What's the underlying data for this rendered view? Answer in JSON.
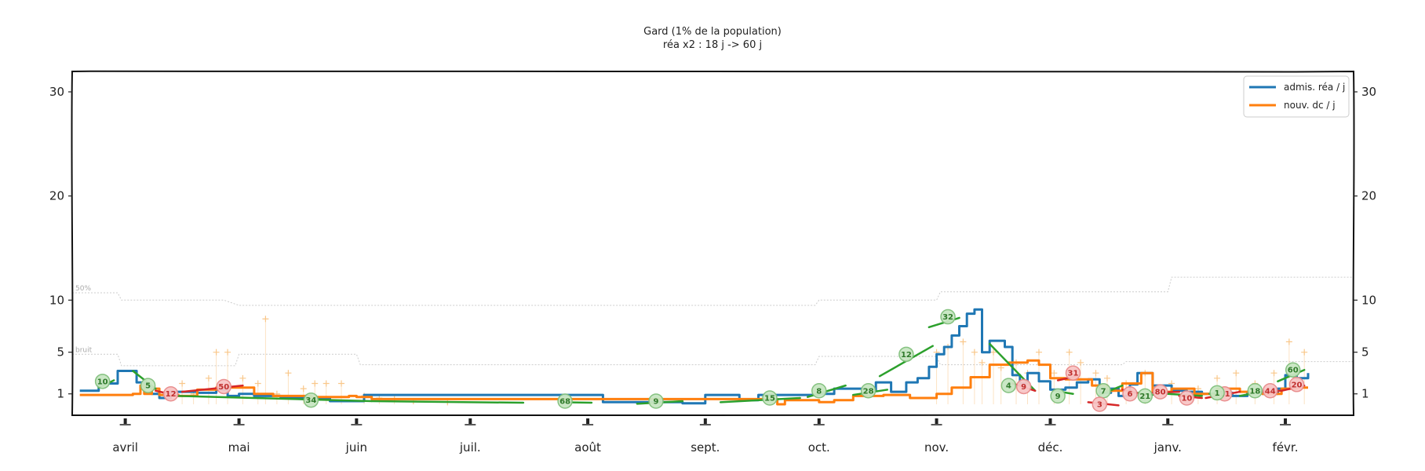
{
  "chart_data": {
    "type": "line",
    "title": "Gard (1% de la population)",
    "subtitle": "réa x2 : 18 j -> 60 j",
    "xlabel": "",
    "ylabel": "",
    "x_range": [
      "2020-03-18",
      "2021-02-19"
    ],
    "ylim": [
      0,
      32
    ],
    "y_ticks": [
      1,
      5,
      10,
      20,
      30
    ],
    "x_ticks": [
      {
        "date": "2020-04-01",
        "label": "avril"
      },
      {
        "date": "2020-05-01",
        "label": "mai"
      },
      {
        "date": "2020-06-01",
        "label": "juin"
      },
      {
        "date": "2020-07-01",
        "label": "juil."
      },
      {
        "date": "2020-08-01",
        "label": "août"
      },
      {
        "date": "2020-09-01",
        "label": "sept."
      },
      {
        "date": "2020-10-01",
        "label": "oct."
      },
      {
        "date": "2020-11-01",
        "label": "nov."
      },
      {
        "date": "2020-12-01",
        "label": "déc."
      },
      {
        "date": "2021-01-01",
        "label": "janv."
      },
      {
        "date": "2021-02-01",
        "label": "févr."
      }
    ],
    "legend": {
      "position": "top-right",
      "entries": [
        {
          "label": "admis. réa / j",
          "color": "#1f77b4"
        },
        {
          "label": "nouv. dc / j",
          "color": "#ff7f0e"
        }
      ]
    },
    "thresholds": [
      {
        "label": "50%",
        "color": "#cccccc",
        "points": [
          [
            "2020-03-18",
            10.7
          ],
          [
            "2020-03-30",
            10.7
          ],
          [
            "2020-03-31",
            10.0
          ],
          [
            "2020-04-27",
            10.0
          ],
          [
            "2020-05-01",
            9.5
          ],
          [
            "2020-09-30",
            9.5
          ],
          [
            "2020-10-01",
            10.0
          ],
          [
            "2020-11-01",
            10.0
          ],
          [
            "2020-11-02",
            10.8
          ],
          [
            "2021-01-01",
            10.8
          ],
          [
            "2021-01-02",
            12.2
          ],
          [
            "2021-02-19",
            12.2
          ]
        ]
      },
      {
        "label": "bruit",
        "color": "#cccccc",
        "points": [
          [
            "2020-03-18",
            4.8
          ],
          [
            "2020-03-30",
            4.8
          ],
          [
            "2020-03-31",
            3.7
          ],
          [
            "2020-04-30",
            3.7
          ],
          [
            "2020-05-01",
            4.8
          ],
          [
            "2020-06-01",
            4.8
          ],
          [
            "2020-06-02",
            3.8
          ],
          [
            "2020-09-30",
            3.8
          ],
          [
            "2020-10-01",
            4.6
          ],
          [
            "2020-11-01",
            4.6
          ],
          [
            "2020-11-02",
            3.8
          ],
          [
            "2020-12-20",
            3.8
          ],
          [
            "2020-12-21",
            4.1
          ],
          [
            "2021-02-19",
            4.1
          ]
        ]
      }
    ],
    "series": [
      {
        "name": "admis. réa / j",
        "color": "#1f77b4",
        "x": [
          "2020-03-20",
          "2020-03-24",
          "2020-03-25",
          "2020-03-28",
          "2020-03-30",
          "2020-04-01",
          "2020-04-04",
          "2020-04-06",
          "2020-04-08",
          "2020-04-10",
          "2020-04-13",
          "2020-04-20",
          "2020-04-25",
          "2020-04-28",
          "2020-05-01",
          "2020-05-05",
          "2020-05-12",
          "2020-05-20",
          "2020-05-25",
          "2020-06-03",
          "2020-08-05",
          "2020-08-20",
          "2020-08-26",
          "2020-09-01",
          "2020-09-06",
          "2020-09-10",
          "2020-09-15",
          "2020-09-25",
          "2020-10-01",
          "2020-10-05",
          "2020-10-08",
          "2020-10-13",
          "2020-10-16",
          "2020-10-20",
          "2020-10-24",
          "2020-10-27",
          "2020-10-30",
          "2020-11-01",
          "2020-11-03",
          "2020-11-05",
          "2020-11-07",
          "2020-11-09",
          "2020-11-11",
          "2020-11-13",
          "2020-11-15",
          "2020-11-19",
          "2020-11-21",
          "2020-11-23",
          "2020-11-25",
          "2020-11-28",
          "2020-12-01",
          "2020-12-05",
          "2020-12-08",
          "2020-12-11",
          "2020-12-14",
          "2020-12-17",
          "2020-12-19",
          "2020-12-22",
          "2020-12-24",
          "2020-12-28",
          "2021-01-02",
          "2021-01-06",
          "2021-01-10",
          "2021-01-14",
          "2021-01-18",
          "2021-01-22",
          "2021-01-26",
          "2021-01-30",
          "2021-02-01",
          "2021-02-04",
          "2021-02-07"
        ],
        "values": [
          1.3,
          1.3,
          2.0,
          2.0,
          3.2,
          3.2,
          2.1,
          1.6,
          1.0,
          0.6,
          1.2,
          1.1,
          1.4,
          0.8,
          1.0,
          0.8,
          0.6,
          0.6,
          0.3,
          0.9,
          0.2,
          0.2,
          0.1,
          0.9,
          0.9,
          0.4,
          0.9,
          0.9,
          1.0,
          1.5,
          1.5,
          1.3,
          2.1,
          1.2,
          2.1,
          2.5,
          3.6,
          4.8,
          5.5,
          6.6,
          7.5,
          8.7,
          9.1,
          5.0,
          6.1,
          5.5,
          2.8,
          2.0,
          3.0,
          2.2,
          1.4,
          1.6,
          2.1,
          2.4,
          1.1,
          1.5,
          0.8,
          1.9,
          3.0,
          1.8,
          1.3,
          1.2,
          1.0,
          1.1,
          0.8,
          1.2,
          1.0,
          1.5,
          2.8,
          2.5,
          3.0
        ]
      },
      {
        "name": "nouv. dc / j",
        "color": "#ff7f0e",
        "x": [
          "2020-03-20",
          "2020-03-28",
          "2020-04-03",
          "2020-04-05",
          "2020-04-06",
          "2020-04-08",
          "2020-04-10",
          "2020-04-15",
          "2020-04-20",
          "2020-04-25",
          "2020-05-01",
          "2020-05-05",
          "2020-05-10",
          "2020-05-20",
          "2020-05-30",
          "2020-06-01",
          "2020-06-05",
          "2020-09-20",
          "2020-09-22",
          "2020-10-01",
          "2020-10-05",
          "2020-10-10",
          "2020-10-18",
          "2020-10-25",
          "2020-11-01",
          "2020-11-05",
          "2020-11-10",
          "2020-11-15",
          "2020-11-20",
          "2020-11-25",
          "2020-11-28",
          "2020-12-01",
          "2020-12-05",
          "2020-12-12",
          "2020-12-16",
          "2020-12-20",
          "2020-12-25",
          "2020-12-28",
          "2021-01-02",
          "2021-01-08",
          "2021-01-14",
          "2021-01-20",
          "2021-01-26",
          "2021-01-31",
          "2021-02-04",
          "2021-02-07"
        ],
        "values": [
          0.9,
          0.9,
          1.0,
          1.8,
          1.0,
          1.5,
          0.9,
          0.8,
          1.4,
          1.6,
          1.6,
          1.0,
          0.8,
          0.7,
          0.8,
          0.7,
          0.5,
          0.0,
          0.4,
          0.2,
          0.4,
          0.8,
          0.9,
          0.6,
          1.0,
          1.6,
          2.6,
          3.8,
          4.0,
          4.2,
          3.8,
          2.5,
          2.4,
          1.8,
          1.3,
          2.0,
          3.0,
          1.2,
          1.5,
          1.0,
          1.5,
          1.2,
          1.0,
          1.5,
          1.6,
          1.6
        ]
      }
    ],
    "trends": [
      {
        "from": "2020-03-25",
        "to": "2020-03-29",
        "y0": 1.6,
        "y1": 2.3,
        "color": "#2ca02c",
        "label": "10",
        "lx": "2020-03-26",
        "ly": 2.2
      },
      {
        "from": "2020-04-03",
        "to": "2020-04-09",
        "y0": 3.2,
        "y1": 1.5,
        "color": "#2ca02c",
        "label": "5",
        "lx": "2020-04-07",
        "ly": 1.8
      },
      {
        "from": "2020-04-09",
        "to": "2020-04-15",
        "y0": 1.3,
        "y1": 0.8,
        "color": "#d62728",
        "label": "12",
        "lx": "2020-04-13",
        "ly": 1.0
      },
      {
        "from": "2020-04-16",
        "to": "2020-05-02",
        "y0": 1.2,
        "y1": 1.8,
        "color": "#d62728",
        "label": "50",
        "lx": "2020-04-27",
        "ly": 1.7
      },
      {
        "from": "2020-04-15",
        "to": "2020-06-05",
        "y0": 0.8,
        "y1": 0.3,
        "color": "#2ca02c",
        "label": "34",
        "lx": "2020-05-20",
        "ly": 0.4
      },
      {
        "from": "2020-06-05",
        "to": "2020-07-15",
        "y0": 0.3,
        "y1": 0.15,
        "color": "#2ca02c",
        "label": "",
        "lx": "",
        "ly": 0
      },
      {
        "from": "2020-07-25",
        "to": "2020-08-02",
        "y0": 0.2,
        "y1": 0.15,
        "color": "#2ca02c",
        "label": "68",
        "lx": "2020-07-26",
        "ly": 0.3
      },
      {
        "from": "2020-08-14",
        "to": "2020-08-26",
        "y0": 0.05,
        "y1": 0.3,
        "color": "#2ca02c",
        "label": "9",
        "lx": "2020-08-19",
        "ly": 0.3
      },
      {
        "from": "2020-09-05",
        "to": "2020-09-26",
        "y0": 0.2,
        "y1": 0.6,
        "color": "#2ca02c",
        "label": "15",
        "lx": "2020-09-18",
        "ly": 0.6
      },
      {
        "from": "2020-09-28",
        "to": "2020-10-08",
        "y0": 0.7,
        "y1": 1.8,
        "color": "#2ca02c",
        "label": "8",
        "lx": "2020-10-01",
        "ly": 1.3
      },
      {
        "from": "2020-10-10",
        "to": "2020-10-19",
        "y0": 0.9,
        "y1": 1.4,
        "color": "#2ca02c",
        "label": "28",
        "lx": "2020-10-14",
        "ly": 1.3
      },
      {
        "from": "2020-10-17",
        "to": "2020-10-31",
        "y0": 2.7,
        "y1": 5.6,
        "color": "#2ca02c",
        "label": "12",
        "lx": "2020-10-24",
        "ly": 4.8
      },
      {
        "from": "2020-10-30",
        "to": "2020-11-07",
        "y0": 7.4,
        "y1": 8.3,
        "color": "#2ca02c",
        "label": "32",
        "lx": "2020-11-04",
        "ly": 8.4
      },
      {
        "from": "2020-11-15",
        "to": "2020-11-27",
        "y0": 5.8,
        "y1": 1.3,
        "color": "#2ca02c",
        "label": "4",
        "lx": "2020-11-20",
        "ly": 1.8
      },
      {
        "from": "2020-11-21",
        "to": "2020-11-27",
        "y0": 2.0,
        "y1": 1.3,
        "color": "#d62728",
        "label": "9",
        "lx": "2020-11-24",
        "ly": 1.7
      },
      {
        "from": "2020-12-02",
        "to": "2020-12-07",
        "y0": 1.3,
        "y1": 1.0,
        "color": "#2ca02c",
        "label": "9",
        "lx": "2020-12-03",
        "ly": 0.8
      },
      {
        "from": "2020-12-03",
        "to": "2020-12-08",
        "y0": 2.3,
        "y1": 2.7,
        "color": "#d62728",
        "label": "31",
        "lx": "2020-12-07",
        "ly": 3.0
      },
      {
        "from": "2020-12-14",
        "to": "2020-12-20",
        "y0": 0.9,
        "y1": 1.8,
        "color": "#2ca02c",
        "label": "7",
        "lx": "2020-12-15",
        "ly": 1.3
      },
      {
        "from": "2020-12-11",
        "to": "2020-12-19",
        "y0": 0.2,
        "y1": -0.1,
        "color": "#d62728",
        "label": "3",
        "lx": "2020-12-14",
        "ly": -0.0
      },
      {
        "from": "2020-12-22",
        "to": "2020-12-28",
        "y0": 1.2,
        "y1": 0.9,
        "color": "#2ca02c",
        "label": "21",
        "lx": "2020-12-26",
        "ly": 0.8
      },
      {
        "from": "2020-12-20",
        "to": "2020-12-26",
        "y0": 1.4,
        "y1": 0.9,
        "color": "#d62728",
        "label": "6",
        "lx": "2020-12-22",
        "ly": 1.0
      },
      {
        "from": "2020-12-28",
        "to": "2021-01-04",
        "y0": 1.1,
        "y1": 1.2,
        "color": "#d62728",
        "label": "80",
        "lx": "2020-12-30",
        "ly": 1.2
      },
      {
        "from": "2021-01-01",
        "to": "2021-01-10",
        "y0": 1.0,
        "y1": 0.8,
        "color": "#2ca02c",
        "label": "",
        "lx": "",
        "ly": 0
      },
      {
        "from": "2021-01-04",
        "to": "2021-01-10",
        "y0": 0.8,
        "y1": 0.6,
        "color": "#d62728",
        "label": "10",
        "lx": "2021-01-06",
        "ly": 0.6
      },
      {
        "from": "2021-01-11",
        "to": "2021-01-20",
        "y0": 0.6,
        "y1": 1.2,
        "color": "#d62728",
        "label": "11",
        "lx": "2021-01-16",
        "ly": 1.0
      },
      {
        "from": "2021-01-12",
        "to": "2021-01-16",
        "y0": 1.0,
        "y1": 1.2,
        "color": "#2ca02c",
        "label": "1",
        "lx": "2021-01-14",
        "ly": 1.1
      },
      {
        "from": "2021-01-20",
        "to": "2021-01-27",
        "y0": 0.8,
        "y1": 1.3,
        "color": "#2ca02c",
        "label": "18",
        "lx": "2021-01-24",
        "ly": 1.3
      },
      {
        "from": "2021-01-26",
        "to": "2021-01-31",
        "y0": 1.2,
        "y1": 1.3,
        "color": "#d62728",
        "label": "44",
        "lx": "2021-01-28",
        "ly": 1.3
      },
      {
        "from": "2021-01-30",
        "to": "2021-02-06",
        "y0": 2.2,
        "y1": 3.3,
        "color": "#2ca02c",
        "label": "60",
        "lx": "2021-02-03",
        "ly": 3.3
      },
      {
        "from": "2021-01-31",
        "to": "2021-02-06",
        "y0": 1.3,
        "y1": 1.8,
        "color": "#d62728",
        "label": "20",
        "lx": "2021-02-04",
        "ly": 1.9
      }
    ],
    "noise": {
      "color": "#f9c78a",
      "x": [
        "2020-04-16",
        "2020-04-19",
        "2020-04-23",
        "2020-04-25",
        "2020-04-28",
        "2020-05-02",
        "2020-05-06",
        "2020-05-08",
        "2020-05-11",
        "2020-05-14",
        "2020-05-18",
        "2020-05-21",
        "2020-05-24",
        "2020-05-28",
        "2020-06-03",
        "2020-06-07",
        "2020-06-11",
        "2020-06-16",
        "2020-06-25",
        "2020-11-01",
        "2020-11-04",
        "2020-11-08",
        "2020-11-11",
        "2020-11-13",
        "2020-11-16",
        "2020-11-18",
        "2020-11-22",
        "2020-11-25",
        "2020-11-28",
        "2020-12-02",
        "2020-12-06",
        "2020-12-09",
        "2020-12-13",
        "2020-12-16",
        "2020-12-21",
        "2020-12-26",
        "2021-01-02",
        "2021-01-09",
        "2021-01-14",
        "2021-01-19",
        "2021-01-24",
        "2021-01-29",
        "2021-02-02",
        "2021-02-06"
      ],
      "values": [
        2.0,
        1.0,
        2.5,
        5.0,
        5.0,
        2.5,
        2.0,
        8.2,
        1.0,
        3.0,
        1.5,
        2.0,
        2.0,
        2.0,
        0.8,
        0.6,
        0.5,
        0.3,
        0.2,
        5.0,
        5.5,
        6.0,
        5.0,
        4.0,
        5.0,
        3.5,
        4.0,
        3.0,
        5.0,
        3.0,
        5.0,
        4.0,
        3.0,
        2.5,
        2.0,
        3.0,
        2.0,
        1.5,
        2.5,
        3.0,
        2.0,
        3.0,
        6.0,
        5.0
      ]
    }
  }
}
